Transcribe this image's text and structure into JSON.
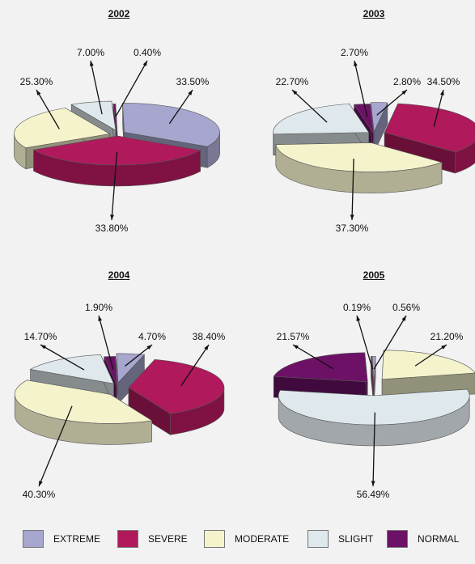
{
  "colors": {
    "EXTREME": "#a6a6cf",
    "SEVERE": "#b0195c",
    "MODERATE": "#f4f3cc",
    "SLIGHT": "#dfe8ec",
    "NORMAL": "#6d1167"
  },
  "legend": [
    {
      "key": "EXTREME",
      "label": "EXTREME"
    },
    {
      "key": "SEVERE",
      "label": "SEVERE"
    },
    {
      "key": "MODERATE",
      "label": "MODERATE"
    },
    {
      "key": "SLIGHT",
      "label": "SLIGHT"
    },
    {
      "key": "NORMAL",
      "label": "NORMAL"
    }
  ],
  "chart_data": [
    {
      "type": "pie",
      "title": "2002",
      "slices": [
        {
          "category": "EXTREME",
          "value": 33.5,
          "label": "33.50%"
        },
        {
          "category": "SEVERE",
          "value": 33.8,
          "label": "33.80%"
        },
        {
          "category": "MODERATE",
          "value": 25.3,
          "label": "25.30%"
        },
        {
          "category": "SLIGHT",
          "value": 7.0,
          "label": "7.00%"
        },
        {
          "category": "NORMAL",
          "value": 0.4,
          "label": "0.40%"
        }
      ]
    },
    {
      "type": "pie",
      "title": "2003",
      "slices": [
        {
          "category": "EXTREME",
          "value": 2.8,
          "label": "2.80%"
        },
        {
          "category": "SEVERE",
          "value": 34.5,
          "label": "34.50%"
        },
        {
          "category": "MODERATE",
          "value": 37.3,
          "label": "37.30%"
        },
        {
          "category": "SLIGHT",
          "value": 22.7,
          "label": "22.70%"
        },
        {
          "category": "NORMAL",
          "value": 2.7,
          "label": "2.70%"
        }
      ]
    },
    {
      "type": "pie",
      "title": "2004",
      "slices": [
        {
          "category": "EXTREME",
          "value": 4.7,
          "label": "4.70%"
        },
        {
          "category": "SEVERE",
          "value": 38.4,
          "label": "38.40%"
        },
        {
          "category": "MODERATE",
          "value": 40.3,
          "label": "40.30%"
        },
        {
          "category": "SLIGHT",
          "value": 14.7,
          "label": "14.70%"
        },
        {
          "category": "NORMAL",
          "value": 1.9,
          "label": "1.90%"
        }
      ]
    },
    {
      "type": "pie",
      "title": "2005",
      "slices": [
        {
          "category": "EXTREME",
          "value": 0.56,
          "label": "0.56%"
        },
        {
          "category": "MODERATE",
          "value": 21.2,
          "label": "21.20%"
        },
        {
          "category": "SLIGHT",
          "value": 56.49,
          "label": "56.49%"
        },
        {
          "category": "NORMAL",
          "value": 21.57,
          "label": "21.57%"
        },
        {
          "category": "SEVERE",
          "value": 0.19,
          "label": "0.19%"
        }
      ]
    }
  ]
}
